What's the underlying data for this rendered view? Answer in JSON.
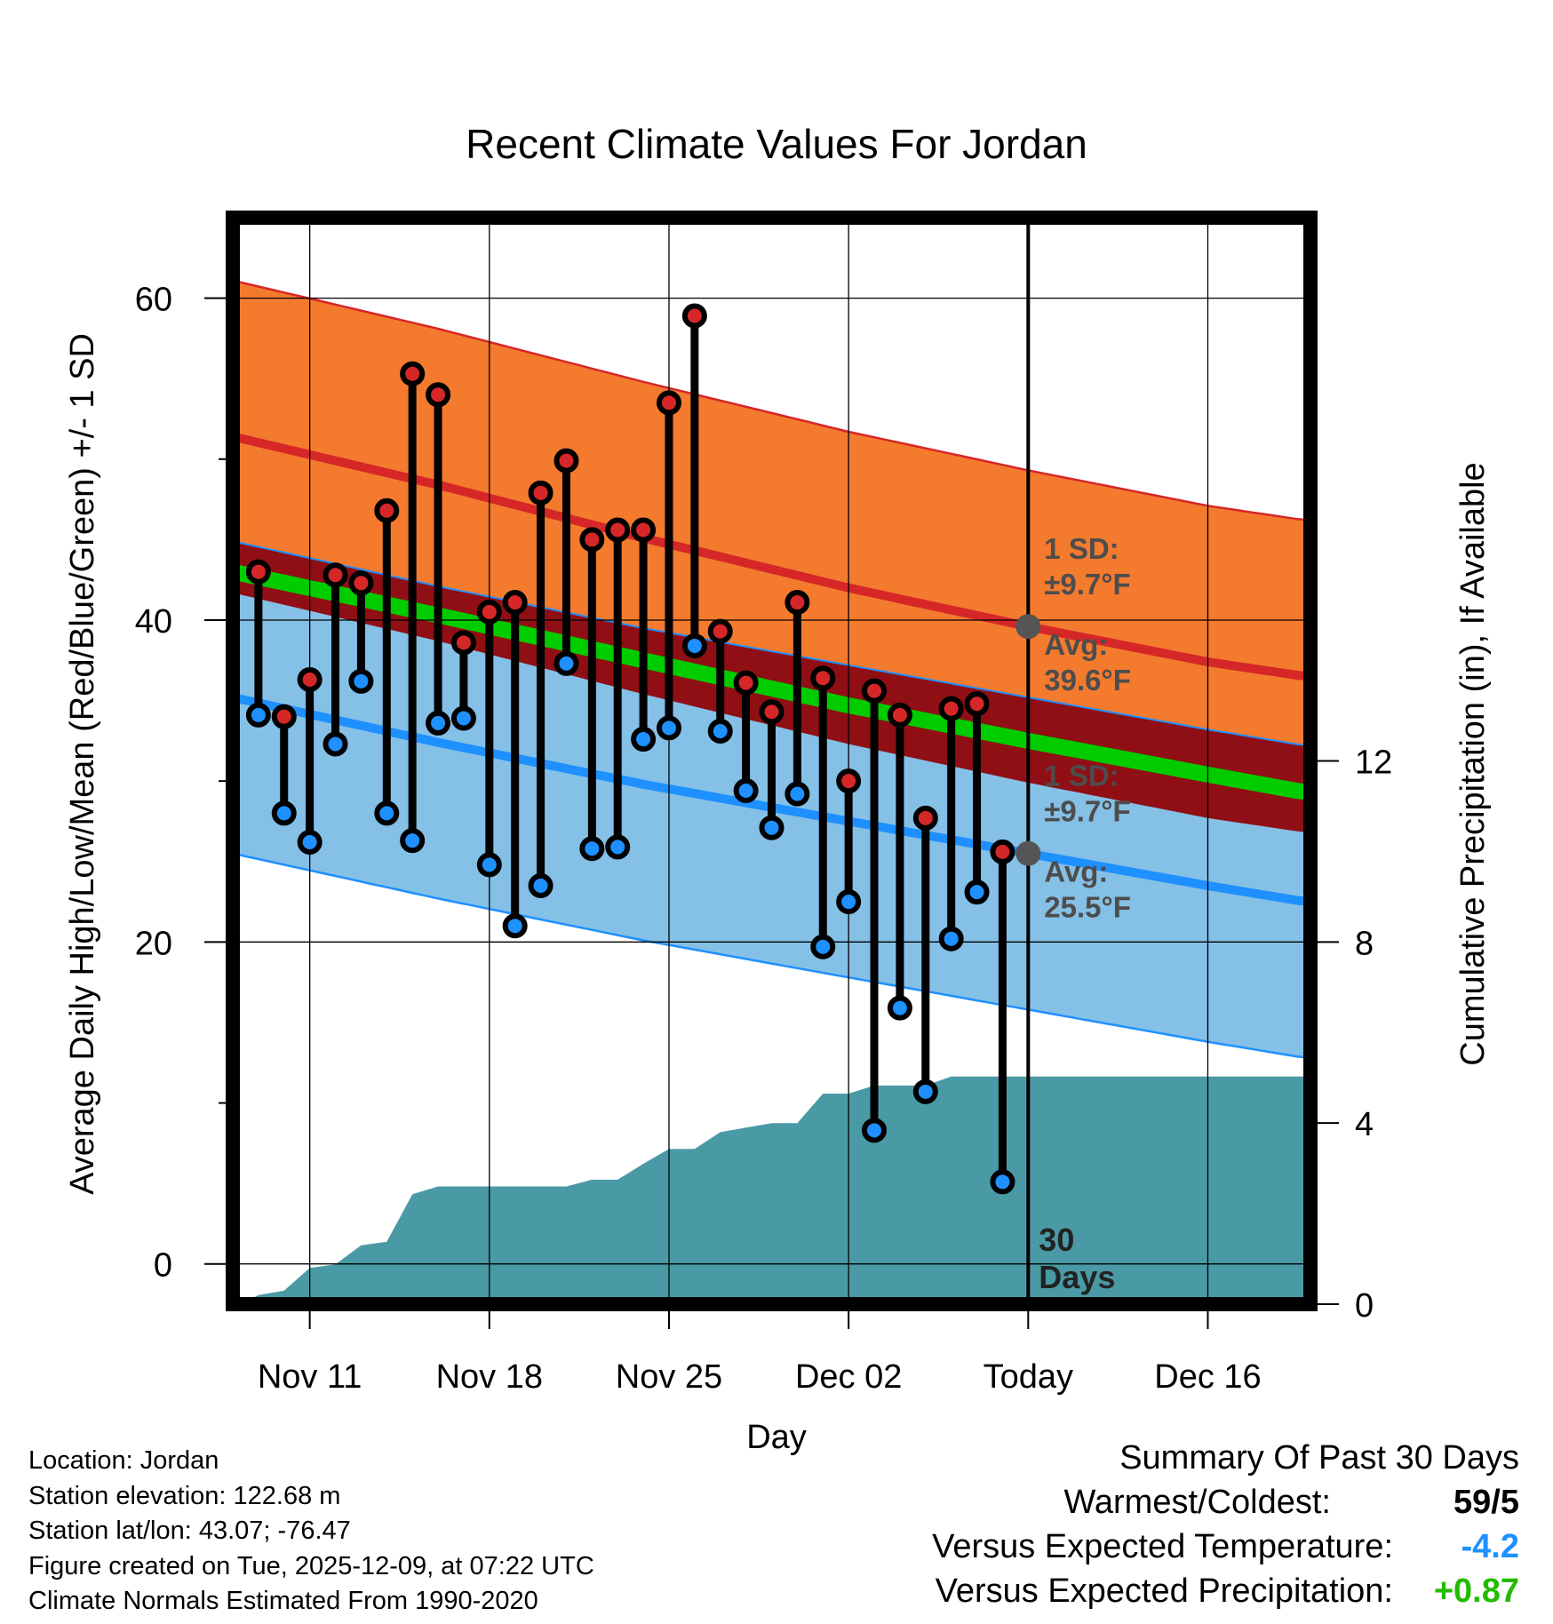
{
  "chart_data": {
    "type": "line",
    "title": "Recent Climate Values For Jordan",
    "xlabel": "Day",
    "ylabel": "Average Daily High/Low/Mean (Red/Blue/Green) +/- 1 SD",
    "y2label": "Cumulative Precipitation (in), If Available",
    "ylim": [
      -2.5,
      65
    ],
    "y2lim": [
      0,
      24
    ],
    "yticks": [
      0,
      20,
      40,
      60
    ],
    "y2ticks": [
      0,
      4,
      8,
      12
    ],
    "xlim": [
      0,
      42
    ],
    "x_ticks": [
      {
        "day": 3,
        "label": "Nov 11"
      },
      {
        "day": 10,
        "label": "Nov 18"
      },
      {
        "day": 17,
        "label": "Nov 25"
      },
      {
        "day": 24,
        "label": "Dec 02"
      },
      {
        "day": 31,
        "label": "Today"
      },
      {
        "day": 38,
        "label": "Dec 16"
      }
    ],
    "today_day": 31,
    "today_label": "30 Days",
    "normals": {
      "days": [
        0,
        8,
        16,
        24,
        31,
        38,
        41.8
      ],
      "high_avg": [
        51.4,
        48.4,
        45.1,
        42.0,
        39.6,
        37.4,
        36.5
      ],
      "high_sd": 9.7,
      "low_avg": [
        35.2,
        32.4,
        29.8,
        27.5,
        25.5,
        23.5,
        22.5
      ],
      "low_sd": 9.7,
      "mean_avg": [
        43.0,
        40.3,
        37.5,
        34.7,
        32.5,
        30.4,
        29.3
      ]
    },
    "annotations": {
      "high_sd_label": "1 SD:",
      "high_sd_value": "±9.7°F",
      "high_avg_label": "Avg:",
      "high_avg_value": "39.6°F",
      "low_sd_label": "1 SD:",
      "low_sd_value": "±9.7°F",
      "low_avg_label": "Avg:",
      "low_avg_value": "25.5°F"
    },
    "series": [
      {
        "name": "Daily High",
        "color": "#d62728",
        "values": [
          43.0,
          34.0,
          36.3,
          42.8,
          42.3,
          46.8,
          55.3,
          54.0,
          38.6,
          40.5,
          41.1,
          47.9,
          49.9,
          45.0,
          45.6,
          45.6,
          53.5,
          58.9,
          39.3,
          36.1,
          34.3,
          41.1,
          36.4,
          30.0,
          35.6,
          34.1,
          27.7,
          34.5,
          34.8,
          25.6
        ]
      },
      {
        "name": "Daily Low",
        "color": "#1e90ff",
        "values": [
          34.1,
          28.0,
          26.2,
          32.3,
          36.2,
          28.0,
          26.3,
          33.6,
          33.9,
          24.8,
          21.0,
          23.5,
          37.3,
          25.8,
          25.9,
          32.6,
          33.3,
          38.4,
          33.1,
          29.4,
          27.1,
          29.2,
          19.7,
          22.5,
          8.3,
          15.9,
          10.7,
          20.2,
          23.1,
          5.1
        ]
      }
    ],
    "obs_days": [
      1,
      2,
      3,
      4,
      5,
      6,
      7,
      8,
      9,
      10,
      11,
      12,
      13,
      14,
      15,
      16,
      17,
      18,
      19,
      20,
      21,
      22,
      23,
      24,
      25,
      26,
      27,
      28,
      29,
      30
    ],
    "precip": {
      "name": "Cumulative Precipitation",
      "color": "#4a9aa6",
      "days": [
        0.5,
        1,
        2,
        3,
        4,
        5,
        6,
        7,
        8,
        9,
        10,
        11,
        12,
        13,
        14,
        15,
        16,
        17,
        18,
        19,
        20,
        21,
        22,
        23,
        24,
        25,
        26,
        27,
        28,
        29,
        30,
        31,
        41.8
      ],
      "values": [
        0.05,
        0.2,
        0.3,
        0.8,
        0.88,
        1.3,
        1.38,
        2.43,
        2.6,
        2.6,
        2.6,
        2.6,
        2.6,
        2.6,
        2.75,
        2.75,
        3.1,
        3.43,
        3.43,
        3.8,
        3.9,
        4.0,
        4.0,
        4.65,
        4.65,
        4.83,
        4.83,
        4.83,
        5.03,
        5.03,
        5.03,
        5.03,
        5.03
      ]
    }
  },
  "footer": {
    "location": "Location: Jordan",
    "elevation": "Station elevation: 122.68 m",
    "latlon": "Station lat/lon: 43.07; -76.47",
    "created": "Figure created on Tue, 2025-12-09, at 07:22 UTC",
    "normals": "Climate Normals Estimated From 1990-2020"
  },
  "summary": {
    "title": "Summary Of Past 30 Days",
    "warmest_coldest_label": "Warmest/Coldest:",
    "warmest_coldest_value": "59/5",
    "temp_label": "Versus Expected Temperature:",
    "temp_value": "-4.2",
    "temp_color": "#1e90ff",
    "precip_label": "Versus Expected Precipitation:",
    "precip_value": "+0.87",
    "precip_color": "#22bb00"
  }
}
